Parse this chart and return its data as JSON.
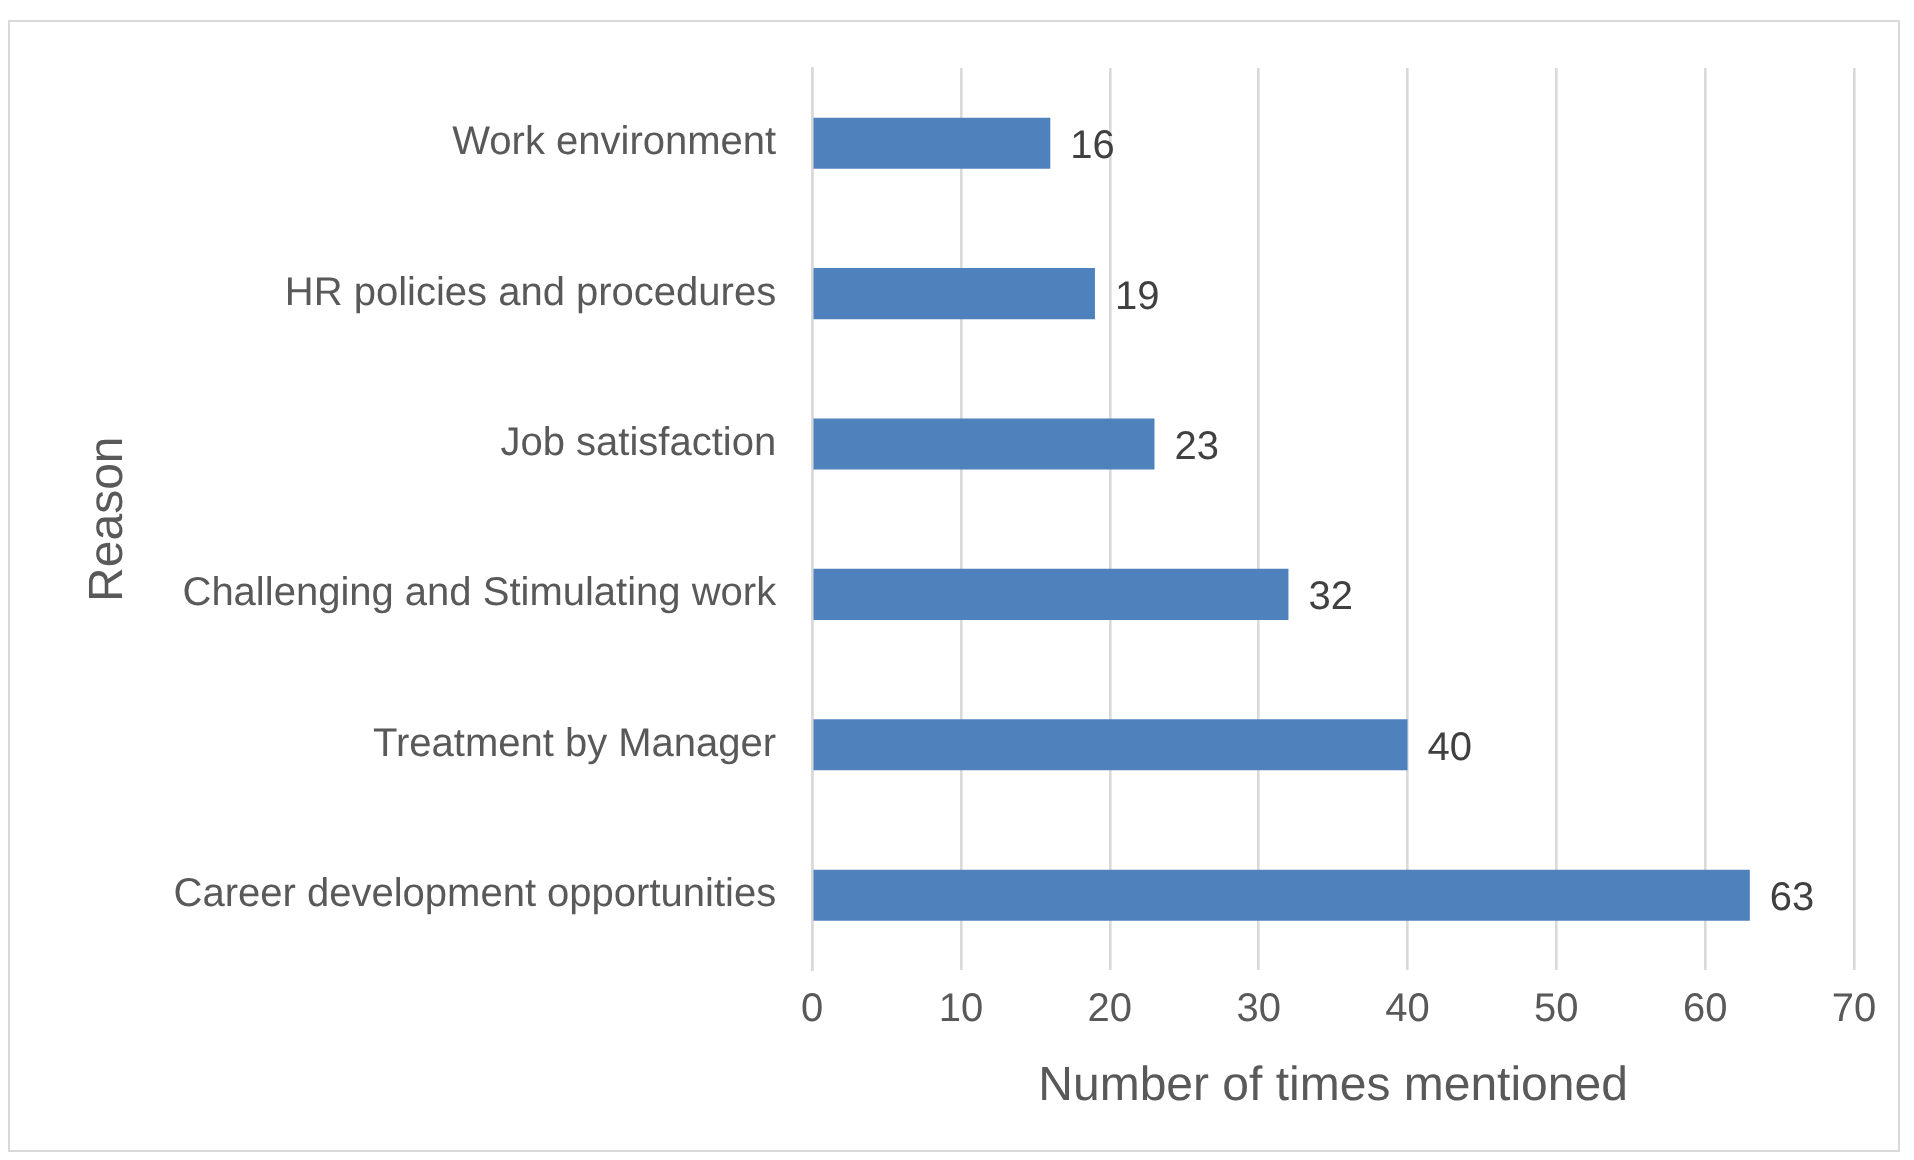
{
  "chart_data": {
    "type": "bar",
    "orientation": "horizontal",
    "ylabel": "Reason",
    "xlabel": "Number of times mentioned",
    "categories": [
      "Work environment",
      "HR policies and procedures",
      "Job satisfaction",
      "Challenging and Stimulating work",
      "Treatment by Manager",
      "Career development opportunities"
    ],
    "values": [
      16,
      19,
      23,
      32,
      40,
      63
    ],
    "color": "#4f81bd",
    "data_labels": true,
    "xlim": [
      0,
      70
    ],
    "xticks": [
      0,
      10,
      20,
      30,
      40,
      50,
      60,
      70
    ],
    "grid": "x",
    "legend": false
  }
}
